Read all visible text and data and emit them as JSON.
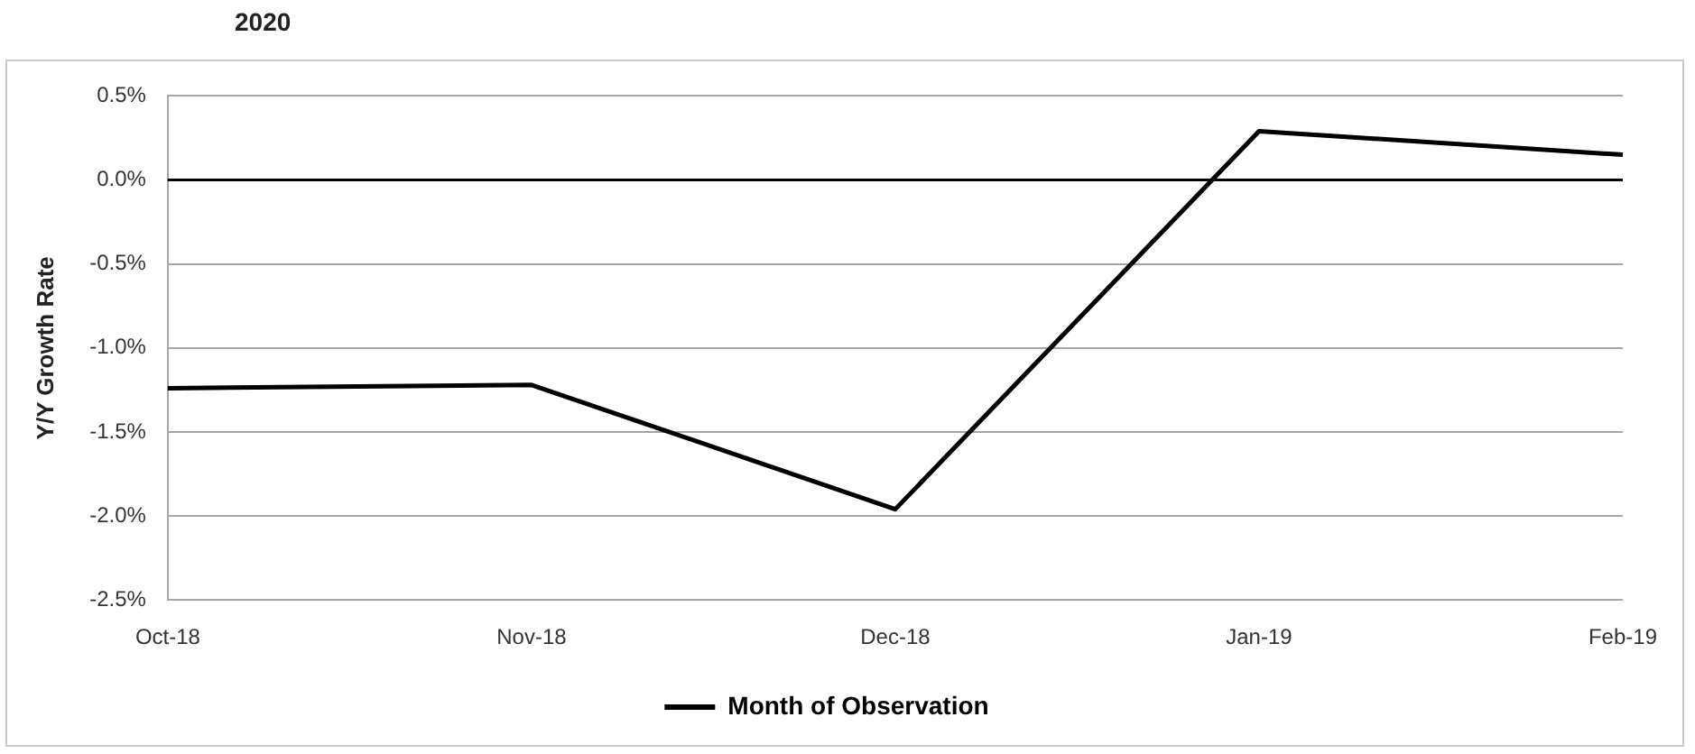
{
  "chart_data": {
    "type": "line",
    "title": "2020",
    "ylabel": "Y/Y Growth Rate",
    "categories": [
      "Oct-18",
      "Nov-18",
      "Dec-18",
      "Jan-19",
      "Feb-19"
    ],
    "series": [
      {
        "name": "Month of Observation",
        "color": "#000000",
        "values": [
          -1.24,
          -1.22,
          -1.96,
          0.29,
          0.15
        ]
      }
    ],
    "ylim": [
      -2.5,
      0.5
    ],
    "yticks": [
      {
        "value": -2.5,
        "label": "-2.5%"
      },
      {
        "value": -2.0,
        "label": "-2.0%"
      },
      {
        "value": -1.5,
        "label": "-1.5%"
      },
      {
        "value": -1.0,
        "label": "-1.0%"
      },
      {
        "value": -0.5,
        "label": "-0.5%"
      },
      {
        "value": 0.0,
        "label": "0.0%"
      },
      {
        "value": 0.5,
        "label": "0.5%"
      }
    ],
    "ref_lines": [
      {
        "axis": "y",
        "value": 0,
        "color": "#000000"
      }
    ],
    "grid": "y",
    "legend": "bottom",
    "marker": "none",
    "line_style": "solid"
  }
}
